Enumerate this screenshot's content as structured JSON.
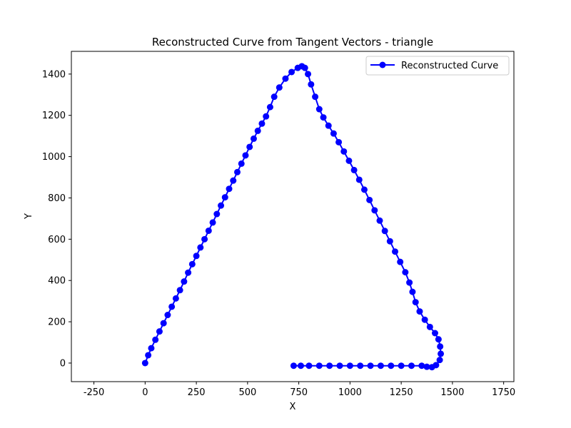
{
  "chart_data": {
    "type": "line",
    "title": "Reconstructed Curve from Tangent Vectors - triangle",
    "xlabel": "X",
    "ylabel": "Y",
    "xlim": [
      -360,
      1800
    ],
    "ylim": [
      -90,
      1510
    ],
    "xticks": [
      -250,
      0,
      250,
      500,
      750,
      1000,
      1250,
      1500,
      1750
    ],
    "yticks": [
      0,
      200,
      400,
      600,
      800,
      1000,
      1200,
      1400
    ],
    "grid": false,
    "legend_position": "top-right",
    "series": [
      {
        "name": "Reconstructed Curve",
        "color": "#0000ff",
        "marker": "circle",
        "points": [
          [
            0,
            0
          ],
          [
            15,
            38
          ],
          [
            30,
            72
          ],
          [
            50,
            113
          ],
          [
            70,
            153
          ],
          [
            90,
            193
          ],
          [
            110,
            233
          ],
          [
            130,
            273
          ],
          [
            150,
            313
          ],
          [
            170,
            353
          ],
          [
            190,
            395
          ],
          [
            210,
            438
          ],
          [
            230,
            479
          ],
          [
            250,
            519
          ],
          [
            270,
            560
          ],
          [
            290,
            600
          ],
          [
            310,
            641
          ],
          [
            330,
            681
          ],
          [
            350,
            722
          ],
          [
            370,
            763
          ],
          [
            390,
            803
          ],
          [
            410,
            844
          ],
          [
            430,
            884
          ],
          [
            450,
            925
          ],
          [
            470,
            966
          ],
          [
            490,
            1006
          ],
          [
            510,
            1047
          ],
          [
            530,
            1087
          ],
          [
            550,
            1125
          ],
          [
            570,
            1160
          ],
          [
            590,
            1195
          ],
          [
            610,
            1240
          ],
          [
            630,
            1290
          ],
          [
            655,
            1335
          ],
          [
            685,
            1378
          ],
          [
            715,
            1410
          ],
          [
            745,
            1430
          ],
          [
            765,
            1438
          ],
          [
            780,
            1430
          ],
          [
            795,
            1400
          ],
          [
            810,
            1350
          ],
          [
            830,
            1290
          ],
          [
            850,
            1230
          ],
          [
            870,
            1190
          ],
          [
            895,
            1150
          ],
          [
            920,
            1112
          ],
          [
            945,
            1070
          ],
          [
            970,
            1025
          ],
          [
            995,
            980
          ],
          [
            1020,
            935
          ],
          [
            1045,
            888
          ],
          [
            1070,
            840
          ],
          [
            1095,
            790
          ],
          [
            1120,
            740
          ],
          [
            1145,
            690
          ],
          [
            1170,
            640
          ],
          [
            1195,
            590
          ],
          [
            1220,
            540
          ],
          [
            1245,
            490
          ],
          [
            1270,
            440
          ],
          [
            1290,
            390
          ],
          [
            1305,
            345
          ],
          [
            1320,
            295
          ],
          [
            1340,
            250
          ],
          [
            1365,
            210
          ],
          [
            1390,
            175
          ],
          [
            1415,
            145
          ],
          [
            1432,
            115
          ],
          [
            1440,
            80
          ],
          [
            1443,
            45
          ],
          [
            1438,
            15
          ],
          [
            1420,
            -10
          ],
          [
            1400,
            -20
          ],
          [
            1375,
            -18
          ],
          [
            1350,
            -13
          ],
          [
            1300,
            -13
          ],
          [
            1250,
            -13
          ],
          [
            1200,
            -13
          ],
          [
            1150,
            -13
          ],
          [
            1100,
            -13
          ],
          [
            1050,
            -13
          ],
          [
            1000,
            -13
          ],
          [
            950,
            -13
          ],
          [
            900,
            -13
          ],
          [
            850,
            -13
          ],
          [
            800,
            -13
          ],
          [
            760,
            -13
          ],
          [
            725,
            -13
          ]
        ]
      }
    ]
  }
}
